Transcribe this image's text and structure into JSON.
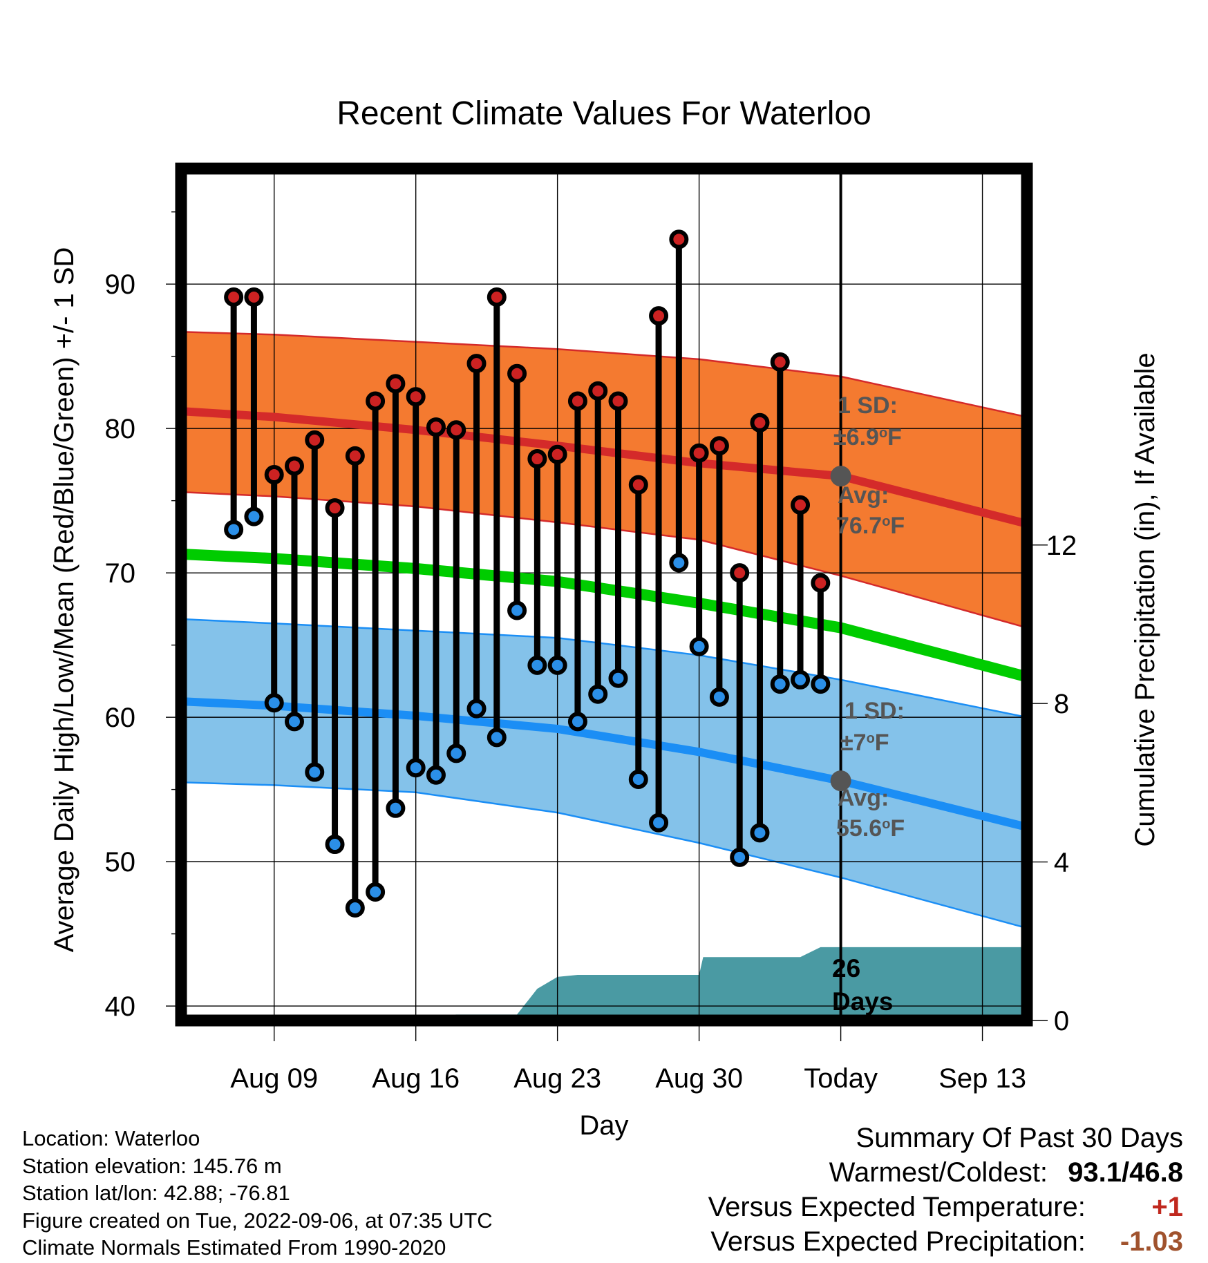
{
  "chart_data": {
    "type": "line",
    "title": "Recent Climate Values For Waterloo",
    "xlabel": "Day",
    "ylabel": "Average Daily High/Low/Mean (Red/Blue/Green) +/- 1 SD",
    "y2label": "Cumulative Precipitation (in), If Available",
    "ylim": [
      39,
      98
    ],
    "y2lim": [
      0,
      21.5
    ],
    "xlim": [
      -4.6,
      37.2
    ],
    "yticks": [
      40,
      50,
      60,
      70,
      80,
      90
    ],
    "y2ticks": [
      0,
      4,
      8,
      12
    ],
    "xticks": [
      {
        "pos": 0,
        "label": "Aug 09"
      },
      {
        "pos": 7,
        "label": "Aug 16"
      },
      {
        "pos": 14,
        "label": "Aug 23"
      },
      {
        "pos": 21,
        "label": "Aug 30"
      },
      {
        "pos": 28,
        "label": "Today"
      },
      {
        "pos": 35,
        "label": "Sep 13"
      }
    ],
    "today": 28,
    "grid": true,
    "x": [
      -2,
      -1,
      0,
      1,
      2,
      3,
      4,
      5,
      6,
      7,
      8,
      9,
      10,
      11,
      12,
      13,
      14,
      15,
      16,
      17,
      18,
      19,
      20,
      21,
      22,
      23,
      24,
      25,
      26,
      27
    ],
    "daily_high": [
      89.1,
      89.1,
      76.8,
      77.4,
      79.2,
      74.5,
      78.1,
      81.9,
      83.1,
      82.2,
      80.1,
      79.9,
      84.5,
      89.1,
      83.8,
      77.9,
      78.2,
      81.9,
      82.6,
      81.9,
      76.1,
      87.8,
      93.1,
      78.3,
      78.8,
      70.0,
      80.4,
      84.6,
      74.7,
      69.3
    ],
    "daily_low": [
      73.0,
      73.9,
      61.0,
      59.7,
      56.2,
      51.2,
      46.8,
      47.9,
      53.7,
      56.5,
      56.0,
      57.5,
      60.6,
      58.6,
      67.4,
      63.6,
      63.6,
      59.7,
      61.6,
      62.7,
      55.7,
      52.7,
      70.7,
      64.9,
      61.4,
      50.3,
      52.0,
      62.3,
      62.6,
      62.3
    ],
    "normals": {
      "x": [
        -4.6,
        0,
        7,
        14,
        21,
        28,
        37.2
      ],
      "high_avg": [
        81.2,
        80.8,
        79.9,
        78.8,
        77.6,
        76.7,
        73.4
      ],
      "high_sd_upper": [
        86.7,
        86.5,
        86.0,
        85.5,
        84.8,
        83.6,
        80.8
      ],
      "high_sd_lower": [
        75.6,
        75.3,
        74.6,
        73.5,
        72.3,
        69.8,
        66.2
      ],
      "mean_avg": [
        71.3,
        71.0,
        70.3,
        69.4,
        67.9,
        66.2,
        62.8
      ],
      "low_avg": [
        61.1,
        60.8,
        60.1,
        59.2,
        57.6,
        55.6,
        52.4
      ],
      "low_sd_upper": [
        66.8,
        66.5,
        66.0,
        65.5,
        64.3,
        62.6,
        60.0
      ],
      "low_sd_lower": [
        55.5,
        55.3,
        54.8,
        53.4,
        51.3,
        48.9,
        45.4
      ]
    },
    "precip": {
      "x": [
        -4.6,
        6.8,
        8,
        9,
        10,
        11,
        12,
        13,
        14,
        15,
        16,
        17,
        18,
        19,
        20,
        21,
        21.2,
        22,
        23,
        24,
        25,
        26,
        27,
        28,
        37.2
      ],
      "cumulative": [
        0,
        0,
        0.1,
        0.15,
        0.15,
        0.15,
        0.15,
        0.8,
        1.1,
        1.15,
        1.15,
        1.15,
        1.15,
        1.15,
        1.15,
        1.15,
        1.6,
        1.6,
        1.6,
        1.6,
        1.6,
        1.6,
        1.85,
        1.85,
        1.85
      ]
    },
    "annotations": {
      "high_sd_label": "1 SD:",
      "high_sd_value": "±6.9",
      "high_avg_label": "Avg:",
      "high_avg_value": "76.7",
      "low_sd_label": "1 SD:",
      "low_sd_value": "±7",
      "low_avg_label": "Avg:",
      "low_avg_value": "55.6",
      "degree_symbol": "o",
      "unit": "F",
      "days_count": "26",
      "days_label": "Days"
    },
    "colors": {
      "high_band": "#f47a30",
      "high_line": "#d42a2a",
      "mean_line": "#00cc00",
      "low_band": "#84c2ea",
      "low_line": "#1b8ef5",
      "precip": "#4a9aa3",
      "high_marker": "#cc2222",
      "low_marker": "#2b8fe8",
      "annotation": "#555555"
    }
  },
  "info": {
    "location": "Location: Waterloo",
    "elevation": "Station elevation: 145.76 m",
    "latlon": "Station lat/lon: 42.88; -76.81",
    "created": "Figure created on Tue, 2022-09-06, at 07:35 UTC",
    "normals": "Climate Normals Estimated From 1990-2020"
  },
  "summary": {
    "title": "Summary Of Past 30 Days",
    "warm_cold_label": "Warmest/Coldest:",
    "warm_cold_value": "93.1/46.8",
    "temp_label": "Versus Expected Temperature:",
    "temp_value": "+1",
    "temp_color": "#c0281e",
    "precip_label": "Versus Expected Precipitation:",
    "precip_value": "-1.03",
    "precip_color": "#a0522d"
  }
}
